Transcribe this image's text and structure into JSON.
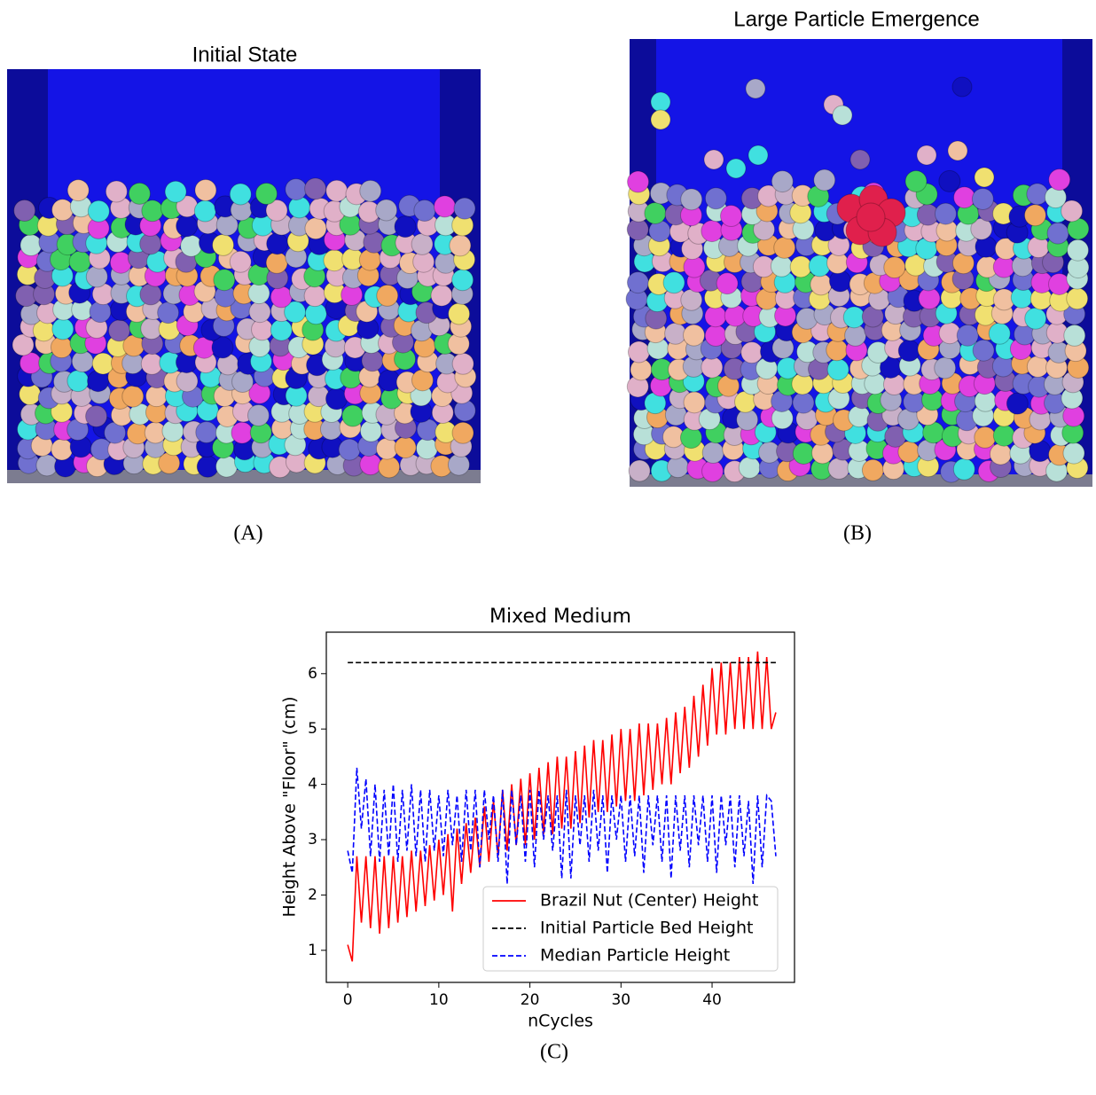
{
  "panels": {
    "a": {
      "title": "Initial State",
      "caption": "(A)"
    },
    "b": {
      "title": "Large Particle Emergence",
      "caption": "(B)"
    },
    "c": {
      "caption": "(C)"
    }
  },
  "chart_data": {
    "type": "line",
    "title": "Mixed Medium",
    "xlabel": "nCycles",
    "ylabel": "Height Above \"Floor\" (cm)",
    "x": [
      0,
      0.5,
      1,
      1.5,
      2,
      2.5,
      3,
      3.5,
      4,
      4.5,
      5,
      5.5,
      6,
      6.5,
      7,
      7.5,
      8,
      8.5,
      9,
      9.5,
      10,
      10.5,
      11,
      11.5,
      12,
      12.5,
      13,
      13.5,
      14,
      14.5,
      15,
      15.5,
      16,
      16.5,
      17,
      17.5,
      18,
      18.5,
      19,
      19.5,
      20,
      20.5,
      21,
      21.5,
      22,
      22.5,
      23,
      23.5,
      24,
      24.5,
      25,
      25.5,
      26,
      26.5,
      27,
      27.5,
      28,
      28.5,
      29,
      29.5,
      30,
      30.5,
      31,
      31.5,
      32,
      32.5,
      33,
      33.5,
      34,
      34.5,
      35,
      35.5,
      36,
      36.5,
      37,
      37.5,
      38,
      38.5,
      39,
      39.5,
      40,
      40.5,
      41,
      41.5,
      42,
      42.5,
      43,
      43.5,
      44,
      44.5,
      45,
      45.5,
      46,
      46.5,
      47
    ],
    "series": [
      {
        "name": "Brazil Nut (Center) Height",
        "color": "#ff0000",
        "linestyle": "solid",
        "values": [
          1.1,
          0.8,
          2.7,
          1.5,
          2.7,
          1.4,
          2.7,
          1.3,
          2.7,
          1.4,
          2.7,
          1.5,
          2.7,
          1.6,
          2.8,
          1.7,
          2.8,
          1.8,
          2.9,
          1.9,
          3.0,
          2.0,
          3.1,
          1.7,
          3.2,
          2.2,
          3.3,
          2.4,
          3.4,
          2.5,
          3.6,
          2.6,
          3.7,
          2.7,
          3.9,
          2.8,
          4.0,
          2.9,
          4.1,
          2.9,
          4.2,
          3.0,
          4.3,
          3.1,
          4.4,
          3.1,
          4.5,
          3.2,
          4.5,
          3.2,
          4.6,
          3.3,
          4.7,
          3.4,
          4.8,
          3.5,
          4.8,
          3.5,
          4.9,
          3.6,
          5.0,
          3.7,
          5.0,
          3.7,
          5.1,
          3.8,
          5.1,
          3.9,
          5.1,
          4.0,
          5.2,
          4.0,
          5.3,
          4.2,
          5.4,
          4.3,
          5.6,
          4.5,
          5.8,
          4.7,
          6.1,
          4.9,
          6.2,
          4.9,
          6.2,
          5.0,
          6.3,
          5.0,
          6.3,
          5.0,
          6.4,
          5.0,
          6.3,
          5.0,
          5.3
        ]
      },
      {
        "name": "Initial Particle Bed Height",
        "color": "#000000",
        "linestyle": "dashed",
        "values": [
          6.2,
          6.2,
          6.2,
          6.2,
          6.2,
          6.2,
          6.2,
          6.2,
          6.2,
          6.2,
          6.2,
          6.2,
          6.2,
          6.2,
          6.2,
          6.2,
          6.2,
          6.2,
          6.2,
          6.2,
          6.2,
          6.2,
          6.2,
          6.2,
          6.2,
          6.2,
          6.2,
          6.2,
          6.2,
          6.2,
          6.2,
          6.2,
          6.2,
          6.2,
          6.2,
          6.2,
          6.2,
          6.2,
          6.2,
          6.2,
          6.2,
          6.2,
          6.2,
          6.2,
          6.2,
          6.2,
          6.2,
          6.2,
          6.2,
          6.2,
          6.2,
          6.2,
          6.2,
          6.2,
          6.2,
          6.2,
          6.2,
          6.2,
          6.2,
          6.2,
          6.2,
          6.2,
          6.2,
          6.2,
          6.2,
          6.2,
          6.2,
          6.2,
          6.2,
          6.2,
          6.2,
          6.2,
          6.2,
          6.2,
          6.2,
          6.2,
          6.2,
          6.2,
          6.2,
          6.2,
          6.2,
          6.2,
          6.2,
          6.2,
          6.2,
          6.2,
          6.2,
          6.2,
          6.2,
          6.2,
          6.2,
          6.2,
          6.2,
          6.2,
          6.2
        ]
      },
      {
        "name": "Median Particle Height",
        "color": "#0000ff",
        "linestyle": "dashed",
        "values": [
          2.8,
          2.4,
          4.3,
          3.2,
          4.1,
          2.7,
          4.0,
          2.6,
          3.9,
          2.7,
          4.0,
          2.6,
          3.9,
          2.8,
          4.0,
          2.7,
          3.9,
          2.6,
          3.9,
          2.8,
          3.8,
          2.7,
          3.9,
          2.9,
          3.8,
          2.6,
          3.9,
          2.8,
          3.9,
          2.5,
          3.9,
          3.0,
          3.8,
          2.6,
          3.9,
          2.2,
          3.9,
          2.9,
          3.8,
          2.6,
          3.9,
          2.5,
          3.9,
          3.0,
          3.8,
          2.8,
          3.8,
          2.3,
          3.9,
          2.3,
          3.8,
          2.9,
          3.8,
          2.6,
          3.9,
          2.8,
          3.8,
          2.4,
          3.8,
          3.0,
          3.8,
          2.6,
          3.8,
          2.7,
          3.8,
          2.4,
          3.8,
          2.9,
          3.8,
          2.6,
          3.8,
          2.3,
          3.8,
          2.8,
          3.8,
          2.5,
          3.8,
          2.9,
          3.8,
          2.6,
          3.8,
          2.4,
          3.8,
          2.9,
          3.8,
          2.5,
          3.8,
          2.7,
          3.7,
          2.2,
          3.8,
          2.5,
          3.8,
          3.7,
          2.7
        ]
      }
    ],
    "xlim": [
      -2.35,
      49.05
    ],
    "ylim": [
      0.42,
      6.75
    ],
    "xticks": [
      0,
      10,
      20,
      30,
      40
    ],
    "yticks": [
      1,
      2,
      3,
      4,
      5,
      6
    ],
    "legend": "lower right"
  }
}
